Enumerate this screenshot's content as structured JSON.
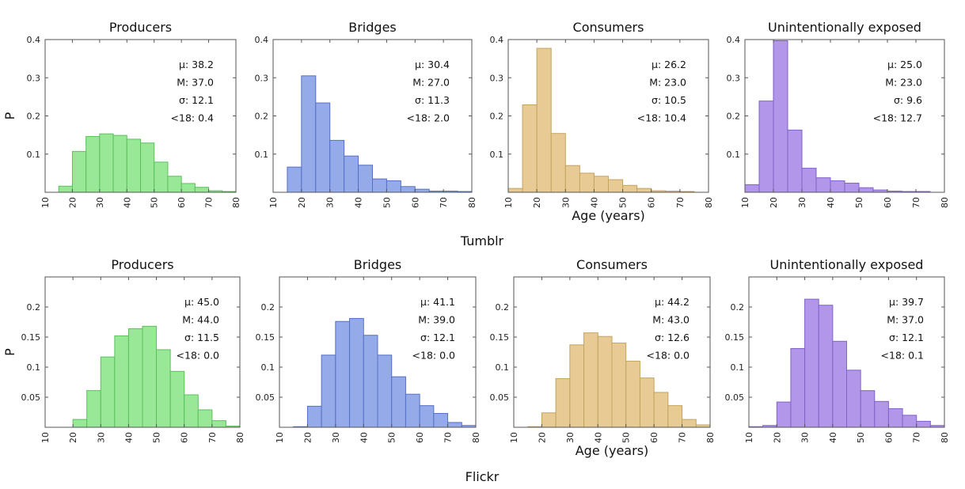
{
  "groups": [
    "Tumblr",
    "Flickr"
  ],
  "colors": {
    "Producers": {
      "fill": "#98e898",
      "edge": "#5cbf5c"
    },
    "Bridges": {
      "fill": "#95abe9",
      "edge": "#5570c4"
    },
    "Consumers": {
      "fill": "#e8cb94",
      "edge": "#c2a45e"
    },
    "Unintentionally exposed": {
      "fill": "#b196ea",
      "edge": "#8163c7"
    }
  },
  "chart_data": [
    {
      "type": "bar",
      "group": "Tumblr",
      "title": "Producers",
      "ylabel": "P",
      "xlabel": "",
      "bin_edges": [
        10,
        15,
        20,
        25,
        30,
        35,
        40,
        45,
        50,
        55,
        60,
        65,
        70,
        75,
        80
      ],
      "values": [
        0,
        0.016,
        0.107,
        0.146,
        0.153,
        0.149,
        0.139,
        0.129,
        0.079,
        0.042,
        0.023,
        0.013,
        0.004,
        0.002
      ],
      "xlim": [
        10,
        80
      ],
      "ylim": [
        0,
        0.4
      ],
      "yticks": [
        "0.1",
        "0.2",
        "0.3",
        "0.4"
      ],
      "xticks": [
        "10",
        "20",
        "30",
        "40",
        "50",
        "60",
        "70",
        "80"
      ],
      "stats": [
        "μ: 38.2",
        "M: 37.0",
        "σ: 12.1",
        "<18: 0.4"
      ]
    },
    {
      "type": "bar",
      "group": "Tumblr",
      "title": "Bridges",
      "ylabel": "",
      "xlabel": "",
      "bin_edges": [
        10,
        15,
        20,
        25,
        30,
        35,
        40,
        45,
        50,
        55,
        60,
        65,
        70,
        75,
        80
      ],
      "values": [
        0,
        0.066,
        0.305,
        0.234,
        0.136,
        0.095,
        0.071,
        0.035,
        0.03,
        0.015,
        0.008,
        0.003,
        0.003,
        0.002
      ],
      "xlim": [
        10,
        80
      ],
      "ylim": [
        0,
        0.4
      ],
      "yticks": [
        "0.1",
        "0.2",
        "0.3",
        "0.4"
      ],
      "xticks": [
        "10",
        "20",
        "30",
        "40",
        "50",
        "60",
        "70",
        "80"
      ],
      "stats": [
        "μ: 30.4",
        "M: 27.0",
        "σ: 11.3",
        "<18: 2.0"
      ]
    },
    {
      "type": "bar",
      "group": "Tumblr",
      "title": "Consumers",
      "ylabel": "",
      "xlabel": "Age (years)",
      "bin_edges": [
        10,
        15,
        20,
        25,
        30,
        35,
        40,
        45,
        50,
        55,
        60,
        65,
        70,
        75,
        80
      ],
      "values": [
        0.01,
        0.229,
        0.377,
        0.154,
        0.07,
        0.05,
        0.042,
        0.033,
        0.018,
        0.01,
        0.004,
        0.003,
        0.002,
        0
      ],
      "xlim": [
        10,
        80
      ],
      "ylim": [
        0,
        0.4
      ],
      "yticks": [
        "0.1",
        "0.2",
        "0.3",
        "0.4"
      ],
      "xticks": [
        "10",
        "20",
        "30",
        "40",
        "50",
        "60",
        "70",
        "80"
      ],
      "stats": [
        "μ: 26.2",
        "M: 23.0",
        "σ: 10.5",
        "<18: 10.4"
      ]
    },
    {
      "type": "bar",
      "group": "Tumblr",
      "title": "Unintentionally exposed",
      "ylabel": "",
      "xlabel": "",
      "bin_edges": [
        10,
        15,
        20,
        25,
        30,
        35,
        40,
        45,
        50,
        55,
        60,
        65,
        70,
        75,
        80
      ],
      "values": [
        0.02,
        0.239,
        0.397,
        0.163,
        0.063,
        0.038,
        0.03,
        0.024,
        0.012,
        0.006,
        0.003,
        0.002,
        0.002,
        0
      ],
      "xlim": [
        10,
        80
      ],
      "ylim": [
        0,
        0.4
      ],
      "yticks": [
        "0.1",
        "0.2",
        "0.3",
        "0.4"
      ],
      "xticks": [
        "10",
        "20",
        "30",
        "40",
        "50",
        "60",
        "70",
        "80"
      ],
      "stats": [
        "μ: 25.0",
        "M: 23.0",
        "σ: 9.6",
        "<18: 12.7"
      ]
    },
    {
      "type": "bar",
      "group": "Flickr",
      "title": "Producers",
      "ylabel": "P",
      "xlabel": "",
      "bin_edges": [
        10,
        15,
        20,
        25,
        30,
        35,
        40,
        45,
        50,
        55,
        60,
        65,
        70,
        75,
        80
      ],
      "values": [
        0,
        0,
        0.013,
        0.061,
        0.117,
        0.152,
        0.164,
        0.168,
        0.129,
        0.093,
        0.054,
        0.029,
        0.011,
        0.002
      ],
      "xlim": [
        10,
        80
      ],
      "ylim": [
        0,
        0.25
      ],
      "yticks": [
        "0.05",
        "0.1",
        "0.15",
        "0.2"
      ],
      "xticks": [
        "10",
        "20",
        "30",
        "40",
        "50",
        "60",
        "70",
        "80"
      ],
      "stats": [
        "μ: 45.0",
        "M: 44.0",
        "σ: 11.5",
        "<18: 0.0"
      ]
    },
    {
      "type": "bar",
      "group": "Flickr",
      "title": "Bridges",
      "ylabel": "",
      "xlabel": "",
      "bin_edges": [
        10,
        15,
        20,
        25,
        30,
        35,
        40,
        45,
        50,
        55,
        60,
        65,
        70,
        75,
        80
      ],
      "values": [
        0,
        0.001,
        0.035,
        0.12,
        0.176,
        0.181,
        0.153,
        0.12,
        0.084,
        0.055,
        0.036,
        0.023,
        0.008,
        0.003
      ],
      "xlim": [
        10,
        80
      ],
      "ylim": [
        0,
        0.25
      ],
      "yticks": [
        "0.05",
        "0.1",
        "0.15",
        "0.2"
      ],
      "xticks": [
        "10",
        "20",
        "30",
        "40",
        "50",
        "60",
        "70",
        "80"
      ],
      "stats": [
        "μ: 41.1",
        "M: 39.0",
        "σ: 12.1",
        "<18: 0.0"
      ]
    },
    {
      "type": "bar",
      "group": "Flickr",
      "title": "Consumers",
      "ylabel": "",
      "xlabel": "Age (years)",
      "bin_edges": [
        10,
        15,
        20,
        25,
        30,
        35,
        40,
        45,
        50,
        55,
        60,
        65,
        70,
        75,
        80
      ],
      "values": [
        0,
        0.001,
        0.024,
        0.081,
        0.137,
        0.157,
        0.151,
        0.14,
        0.11,
        0.082,
        0.058,
        0.036,
        0.013,
        0.004
      ],
      "xlim": [
        10,
        80
      ],
      "ylim": [
        0,
        0.25
      ],
      "yticks": [
        "0.05",
        "0.1",
        "0.15",
        "0.2"
      ],
      "xticks": [
        "10",
        "20",
        "30",
        "40",
        "50",
        "60",
        "70",
        "80"
      ],
      "stats": [
        "μ: 44.2",
        "M: 43.0",
        "σ: 12.6",
        "<18: 0.0"
      ]
    },
    {
      "type": "bar",
      "group": "Flickr",
      "title": "Unintentionally exposed",
      "ylabel": "",
      "xlabel": "",
      "bin_edges": [
        10,
        15,
        20,
        25,
        30,
        35,
        40,
        45,
        50,
        55,
        60,
        65,
        70,
        75,
        80
      ],
      "values": [
        0.001,
        0.003,
        0.042,
        0.131,
        0.213,
        0.203,
        0.143,
        0.095,
        0.061,
        0.043,
        0.031,
        0.02,
        0.01,
        0.003
      ],
      "xlim": [
        10,
        80
      ],
      "ylim": [
        0,
        0.25
      ],
      "yticks": [
        "0.05",
        "0.1",
        "0.15",
        "0.2"
      ],
      "xticks": [
        "10",
        "20",
        "30",
        "40",
        "50",
        "60",
        "70",
        "80"
      ],
      "stats": [
        "μ: 39.7",
        "M: 37.0",
        "σ: 12.1",
        "<18: 0.1"
      ]
    }
  ]
}
